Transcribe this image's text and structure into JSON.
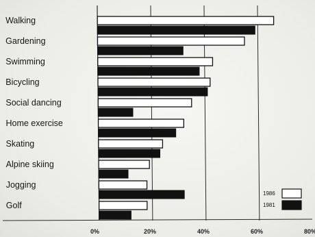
{
  "chart_data": {
    "type": "bar",
    "orientation": "horizontal",
    "categories": [
      "Walking",
      "Gardening",
      "Swimming",
      "Bicycling",
      "Social dancing",
      "Home exercise",
      "Skating",
      "Alpine skiing",
      "Jogging",
      "Golf"
    ],
    "series": [
      {
        "name": "1986",
        "values": [
          66,
          55,
          43,
          42,
          35,
          32,
          24,
          19,
          18,
          18
        ]
      },
      {
        "name": "1981",
        "values": [
          59,
          32,
          38,
          41,
          13,
          29,
          23,
          11,
          32,
          12
        ]
      }
    ],
    "xticks": [
      "0%",
      "20%",
      "40%",
      "60%",
      "80%"
    ],
    "xlim": [
      0,
      80
    ],
    "grid": "vertical",
    "legend": "bottom-right",
    "colors": {
      "1986": "#ffffff",
      "1981": "#111111"
    }
  }
}
